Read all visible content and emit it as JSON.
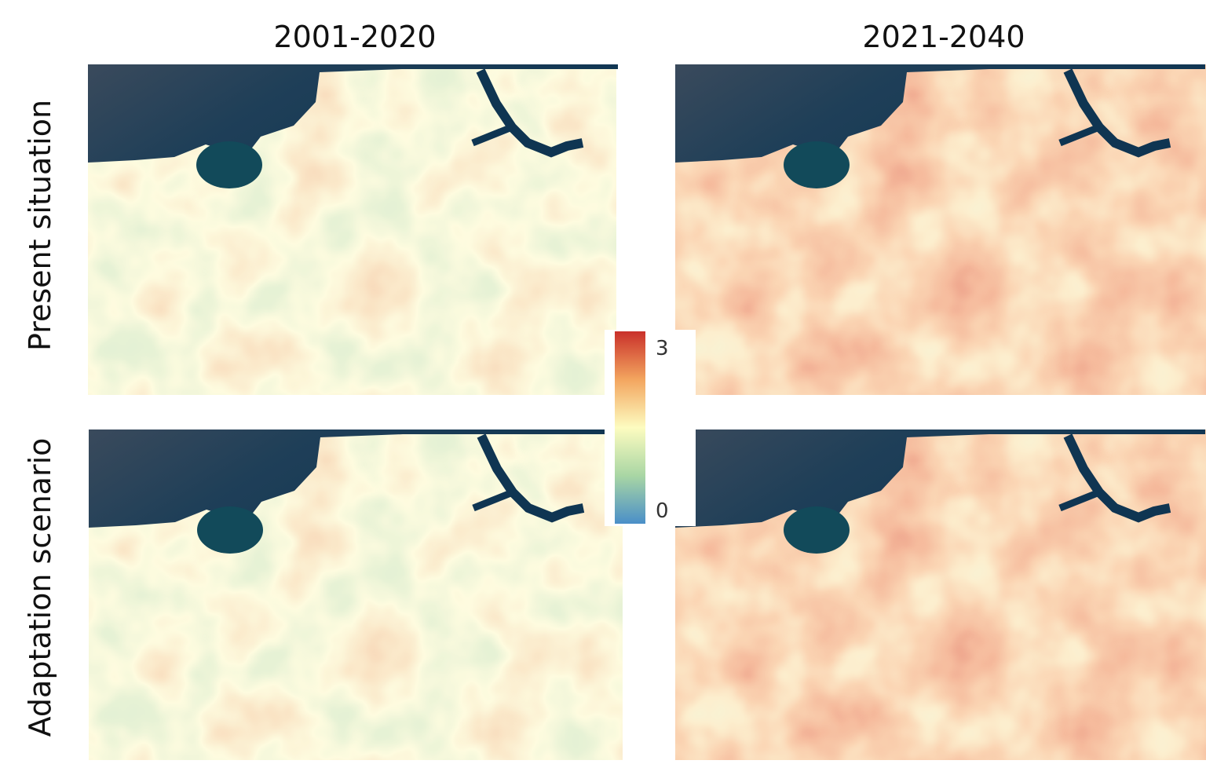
{
  "columns": [
    "2001-2020",
    "2021-2040"
  ],
  "rows": [
    "Present situation",
    "Adaptation scenario"
  ],
  "colorbar": {
    "ticks": [
      0,
      3
    ]
  }
}
